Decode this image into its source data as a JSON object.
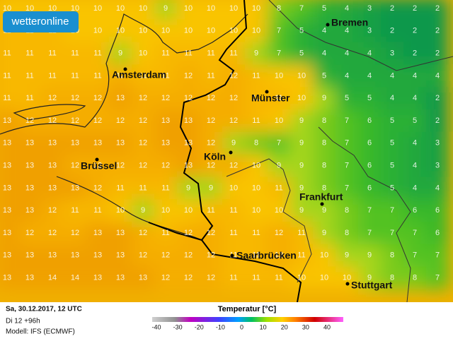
{
  "logo": "wetteronline",
  "cities": [
    {
      "name": "Bremen"
    },
    {
      "name": "Amsterdam"
    },
    {
      "name": "Münster"
    },
    {
      "name": "Köln"
    },
    {
      "name": "Brüssel"
    },
    {
      "name": "Frankfurt"
    },
    {
      "name": "Saarbrücken"
    },
    {
      "name": "Stuttgart"
    }
  ],
  "grid_values": [
    [
      10,
      10,
      10,
      10,
      10,
      10,
      10,
      9,
      10,
      10,
      10,
      10,
      8,
      7,
      5,
      4,
      3,
      2,
      2,
      2
    ],
    [
      11,
      11,
      11,
      10,
      10,
      10,
      10,
      10,
      10,
      10,
      10,
      10,
      7,
      5,
      4,
      4,
      3,
      2,
      2,
      2
    ],
    [
      11,
      11,
      11,
      11,
      11,
      9,
      10,
      11,
      11,
      11,
      11,
      9,
      7,
      5,
      4,
      4,
      4,
      3,
      2,
      2
    ],
    [
      11,
      11,
      11,
      11,
      11,
      12,
      11,
      11,
      12,
      11,
      12,
      11,
      10,
      10,
      5,
      4,
      4,
      4,
      4,
      4
    ],
    [
      11,
      11,
      12,
      12,
      12,
      13,
      12,
      12,
      12,
      12,
      12,
      11,
      11,
      10,
      9,
      5,
      5,
      4,
      4,
      2
    ],
    [
      13,
      12,
      12,
      12,
      12,
      12,
      12,
      13,
      13,
      12,
      12,
      11,
      10,
      9,
      8,
      7,
      6,
      5,
      5,
      2
    ],
    [
      13,
      13,
      13,
      13,
      13,
      13,
      12,
      13,
      13,
      12,
      9,
      8,
      7,
      9,
      8,
      7,
      6,
      5,
      4,
      3
    ],
    [
      13,
      13,
      13,
      12,
      12,
      12,
      12,
      12,
      13,
      12,
      12,
      10,
      9,
      9,
      8,
      7,
      6,
      5,
      4,
      3
    ],
    [
      13,
      13,
      13,
      13,
      12,
      11,
      11,
      11,
      9,
      9,
      10,
      10,
      11,
      9,
      8,
      7,
      6,
      5,
      4,
      4
    ],
    [
      13,
      13,
      12,
      11,
      11,
      10,
      9,
      10,
      10,
      11,
      11,
      10,
      10,
      9,
      9,
      8,
      7,
      7,
      6,
      6
    ],
    [
      13,
      12,
      12,
      12,
      13,
      13,
      12,
      11,
      12,
      12,
      11,
      11,
      12,
      11,
      9,
      8,
      7,
      7,
      7,
      6
    ],
    [
      13,
      13,
      13,
      13,
      13,
      13,
      12,
      12,
      12,
      12,
      11,
      11,
      12,
      11,
      10,
      9,
      9,
      8,
      7,
      7
    ],
    [
      13,
      13,
      14,
      14,
      13,
      13,
      13,
      12,
      12,
      12,
      11,
      11,
      11,
      10,
      10,
      10,
      9,
      8,
      8,
      7
    ]
  ],
  "footer": {
    "date": "Sa, 30.12.2017, 12 UTC",
    "run": "Di 12 +96h",
    "model": "Modell: IFS (ECMWF)"
  },
  "legend": {
    "title": "Temperatur [°C]",
    "ticks": [
      -40,
      -30,
      -20,
      -10,
      0,
      10,
      20,
      30,
      40
    ]
  }
}
